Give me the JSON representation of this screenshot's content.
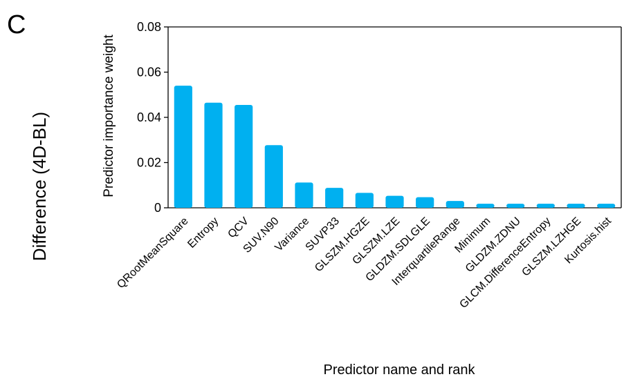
{
  "panel_label": "C",
  "row_label": "Difference (4D-BL)",
  "chart_data": {
    "type": "bar",
    "title": "",
    "xlabel": "Predictor name and rank",
    "ylabel": "Predictor importance weight",
    "ylim": [
      0,
      0.08
    ],
    "yticks": [
      0,
      0.02,
      0.04,
      0.06,
      0.08
    ],
    "ytick_labels": [
      "0",
      "0.02",
      "0.04",
      "0.06",
      "0.08"
    ],
    "grid": false,
    "bar_color": "#00B0F0",
    "categories": [
      "QRootMeanSquare",
      "Entropy",
      "QCV",
      "SUV.N90",
      "Variance",
      "SUVP33",
      "GLSZM.HGZE",
      "GLSZM.LZE",
      "GLDZM.SDLGLE",
      "InterquartileRange",
      "Minimum",
      "GLDZM.ZDNU",
      "GLCM.DifferenceEntropy",
      "GLSZM.LZHGE",
      "Kurtosis.hist"
    ],
    "values": [
      0.054,
      0.0465,
      0.0455,
      0.0277,
      0.0112,
      0.0088,
      0.0066,
      0.0053,
      0.0047,
      0.003,
      0.0018,
      0.0018,
      0.0018,
      0.0018,
      0.0018
    ]
  }
}
